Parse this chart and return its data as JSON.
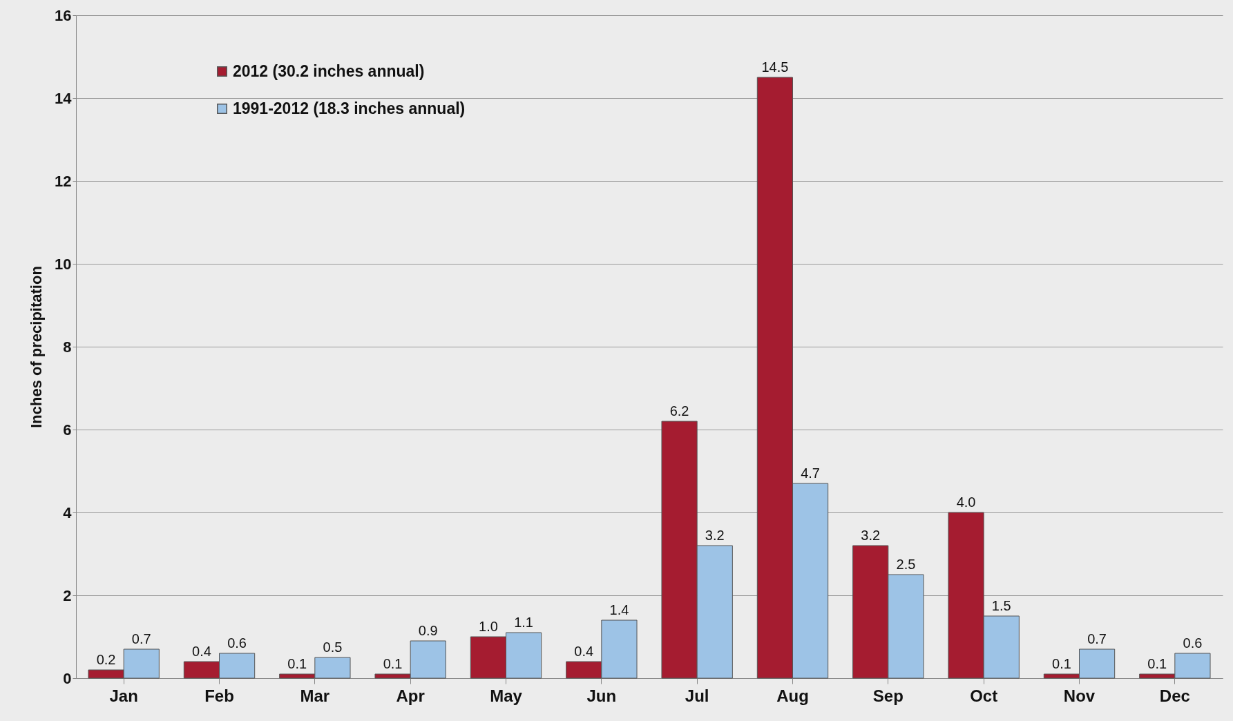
{
  "chart_data": {
    "type": "bar",
    "ylabel": "Inches of precipitation",
    "categories": [
      "Jan",
      "Feb",
      "Mar",
      "Apr",
      "May",
      "Jun",
      "Jul",
      "Aug",
      "Sep",
      "Oct",
      "Nov",
      "Dec"
    ],
    "series": [
      {
        "name": "2012 (30.2 inches annual)",
        "color": "#a51c30",
        "values": [
          0.2,
          0.4,
          0.1,
          0.1,
          1.0,
          0.4,
          6.2,
          14.5,
          3.2,
          4.0,
          0.1,
          0.1
        ],
        "value_labels": [
          "0.2",
          "0.4",
          "0.1",
          "0.1",
          "1.0",
          "0.4",
          "6.2",
          "14.5",
          "3.2",
          "4.0",
          "0.1",
          "0.1"
        ]
      },
      {
        "name": "1991-2012 (18.3 inches annual)",
        "color": "#9dc3e6",
        "values": [
          0.7,
          0.6,
          0.5,
          0.9,
          1.1,
          1.4,
          3.2,
          4.7,
          2.5,
          1.5,
          0.7,
          0.6
        ],
        "value_labels": [
          "0.7",
          "0.6",
          "0.5",
          "0.9",
          "1.1",
          "1.4",
          "3.2",
          "4.7",
          "2.5",
          "1.5",
          "0.7",
          "0.6"
        ]
      }
    ],
    "ylim": [
      0,
      16
    ],
    "yticks": [
      0,
      2,
      4,
      6,
      8,
      10,
      12,
      14,
      16
    ],
    "grid": "y",
    "legend": "top left"
  }
}
